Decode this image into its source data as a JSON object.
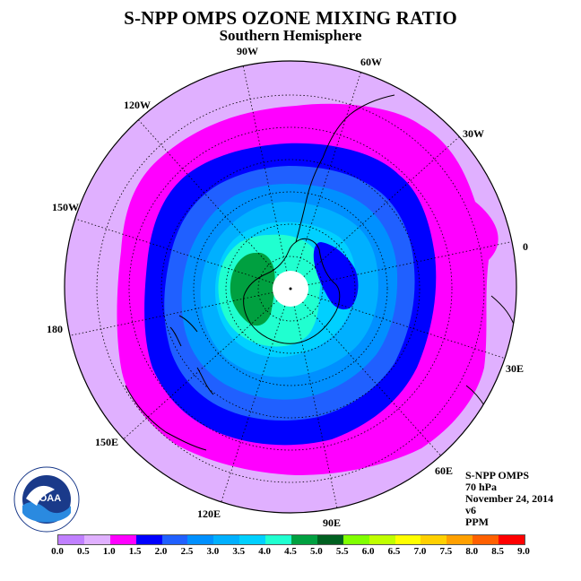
{
  "title": "S-NPP OMPS OZONE MIXING RATIO",
  "subtitle": "Southern Hemisphere",
  "longitude_labels": [
    "90W",
    "60W",
    "30W",
    "0",
    "30E",
    "60E",
    "90E",
    "120E",
    "150E",
    "180",
    "150W",
    "120W"
  ],
  "info": {
    "instrument": "S-NPP OMPS",
    "level": "70 hPa",
    "date": "November 24, 2014",
    "version": "v6",
    "units": "PPM"
  },
  "logo_text": "NOAA",
  "colorbar": {
    "ticks": [
      "0.0",
      "0.5",
      "1.0",
      "1.5",
      "2.0",
      "2.5",
      "3.0",
      "3.5",
      "4.0",
      "4.5",
      "5.0",
      "5.5",
      "6.0",
      "6.5",
      "7.0",
      "7.5",
      "8.0",
      "8.5",
      "9.0"
    ],
    "colors": [
      "#c080ff",
      "#e0b0ff",
      "#ff00ff",
      "#0000ff",
      "#2060ff",
      "#0090ff",
      "#00b0ff",
      "#00d0ff",
      "#20ffd0",
      "#00a040",
      "#006020",
      "#80ff00",
      "#c0ff00",
      "#ffff00",
      "#ffd000",
      "#ffa000",
      "#ff6000",
      "#ff0000",
      "#a06040"
    ]
  },
  "map_colors": {
    "outer": "#e0b0ff",
    "band_1": "#ff00ff",
    "band_1_5": "#0000ff",
    "band_2": "#2060ff",
    "band_2_5": "#0090ff",
    "band_3": "#00b0ff",
    "band_3_5": "#00d0ff",
    "band_4": "#20ffd0",
    "band_4_5": "#00a040",
    "band_5": "#006020",
    "pole": "#ffffff"
  }
}
